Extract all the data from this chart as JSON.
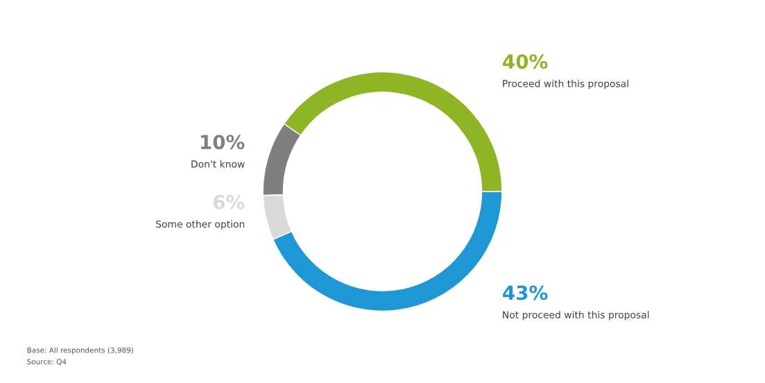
{
  "chart_data": {
    "type": "donut",
    "categories": [
      "Not proceed with this proposal",
      "Some other option",
      "Don't know",
      "Proceed with this proposal"
    ],
    "values": [
      43,
      6,
      10,
      40
    ],
    "colors": [
      "#1e97d4",
      "#d9d9d9",
      "#7f7f7f",
      "#8db526"
    ],
    "value_labels": [
      "43%",
      "6%",
      "10%",
      "40%"
    ],
    "annotations": [
      "Base: All respondents (3,989)",
      "Source: Q4"
    ]
  }
}
